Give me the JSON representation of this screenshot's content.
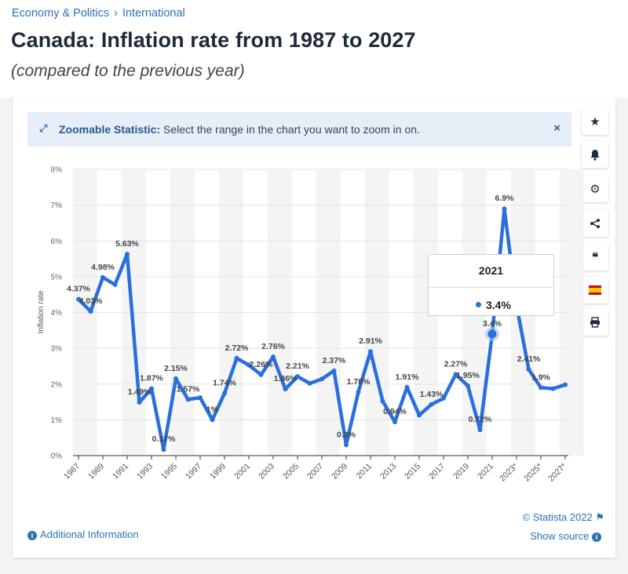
{
  "breadcrumb": {
    "item1": "Economy & Politics",
    "separator": "›",
    "item2": "International"
  },
  "page": {
    "title": "Canada: Inflation rate from 1987 to 2027",
    "subtitle": "(compared to the previous year)"
  },
  "zoom_banner": {
    "icon": "expand-icon",
    "bold": "Zoomable Statistic:",
    "text": " Select the range in the chart you want to zoom in on.",
    "close": "×"
  },
  "sidebar": {
    "star": "★",
    "bell": "🔔",
    "gear": "⚙",
    "share": "⋖",
    "quote": "❝",
    "flag": "flag-spain-icon",
    "print": "⎙"
  },
  "tooltip": {
    "year": "2021",
    "value": "3.4%"
  },
  "footer": {
    "additional_info": "Additional Information",
    "copyright": "© Statista 2022",
    "show_source": "Show source"
  },
  "colors": {
    "line": "#2a6fdb",
    "accent": "#2b73b6",
    "band": "#f4f4f4"
  },
  "chart_data": {
    "type": "line",
    "ylabel": "Inflation rate",
    "ylim": [
      0,
      8
    ],
    "y_ticks": [
      "0%",
      "1%",
      "2%",
      "3%",
      "4%",
      "5%",
      "6%",
      "7%",
      "8%"
    ],
    "x_tick_labels": [
      "1987",
      "1989",
      "1991",
      "1993",
      "1995",
      "1997",
      "1999",
      "2001",
      "2003",
      "2005",
      "2007",
      "2009",
      "2011",
      "2013",
      "2015",
      "2017",
      "2019",
      "2021",
      "2023*",
      "2025*",
      "2027*"
    ],
    "grid": true,
    "x": [
      1987,
      1988,
      1989,
      1990,
      1991,
      1992,
      1993,
      1994,
      1995,
      1996,
      1997,
      1998,
      1999,
      2000,
      2001,
      2002,
      2003,
      2004,
      2005,
      2006,
      2007,
      2008,
      2009,
      2010,
      2011,
      2012,
      2013,
      2014,
      2015,
      2016,
      2017,
      2018,
      2019,
      2020,
      2021,
      2022,
      2023,
      2024,
      2025,
      2026,
      2027
    ],
    "values": [
      4.37,
      4.03,
      4.98,
      4.78,
      5.63,
      1.49,
      1.87,
      0.17,
      2.15,
      1.57,
      1.62,
      1,
      1.74,
      2.72,
      2.53,
      2.26,
      2.76,
      1.86,
      2.21,
      2.02,
      2.14,
      2.37,
      0.3,
      1.78,
      2.91,
      1.52,
      0.94,
      1.91,
      1.13,
      1.43,
      1.6,
      2.27,
      1.95,
      0.72,
      3.4,
      6.9,
      4.2,
      2.41,
      1.9,
      1.87,
      1.98
    ],
    "data_labels": {
      "1987": "4.37%",
      "1988": "4.03%",
      "1989": "4.98%",
      "1991": "5.63%",
      "1992": "1.49%",
      "1993": "1.87%",
      "1994": "0.17%",
      "1995": "2.15%",
      "1996": "1.57%",
      "1998": "1%",
      "1999": "1.74%",
      "2000": "2.72%",
      "2002": "2.26%",
      "2003": "2.76%",
      "2004": "1.86%",
      "2005": "2.21%",
      "2008": "2.37%",
      "2009": "0.3%",
      "2010": "1.78%",
      "2011": "2.91%",
      "2013": "0.94%",
      "2014": "1.91%",
      "2016": "1.43%",
      "2018": "2.27%",
      "2019": "1.95%",
      "2020": "0.72%",
      "2021": "3.4%",
      "2022": "6.9%",
      "2024": "2.41%",
      "2025": "1.9%"
    },
    "highlighted_year": 2021
  }
}
